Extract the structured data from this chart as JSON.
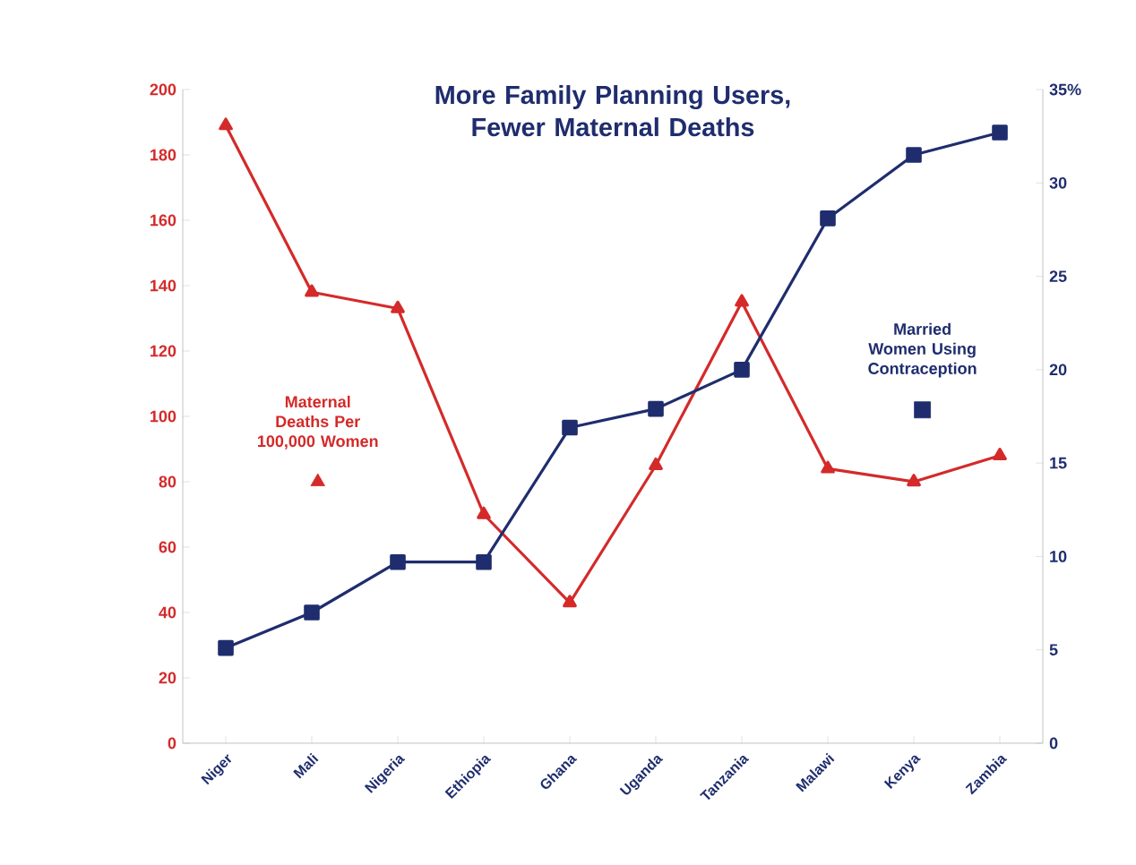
{
  "chart_data": {
    "type": "line",
    "title": "More Family Planning Users, Fewer Maternal Deaths",
    "categories": [
      "Niger",
      "Mali",
      "Nigeria",
      "Ethiopia",
      "Ghana",
      "Uganda",
      "Tanzania",
      "Malawi",
      "Kenya",
      "Zambia"
    ],
    "series": [
      {
        "name": "Maternal Deaths Per 100,000 Women",
        "color": "#d42a2a",
        "marker": "triangle",
        "values": [
          189,
          138,
          133,
          70,
          43,
          85,
          135,
          84,
          80,
          88
        ]
      },
      {
        "name": "Married Women Using Contraception",
        "color": "#1f2d6e",
        "marker": "square",
        "axis": "y2",
        "values": [
          5.1,
          7,
          9.7,
          9.7,
          16.9,
          17.9,
          20,
          28.1,
          31.5,
          32.7
        ]
      }
    ],
    "ylim": [
      0,
      200
    ],
    "yticks": [
      0,
      20,
      40,
      60,
      80,
      100,
      120,
      140,
      160,
      180,
      200
    ],
    "legend": "right",
    "y2lim": [
      0,
      35
    ],
    "y2ticks": [
      0,
      5,
      10,
      15,
      20,
      25,
      30,
      {
        "value": 35,
        "label": "35%"
      }
    ]
  }
}
